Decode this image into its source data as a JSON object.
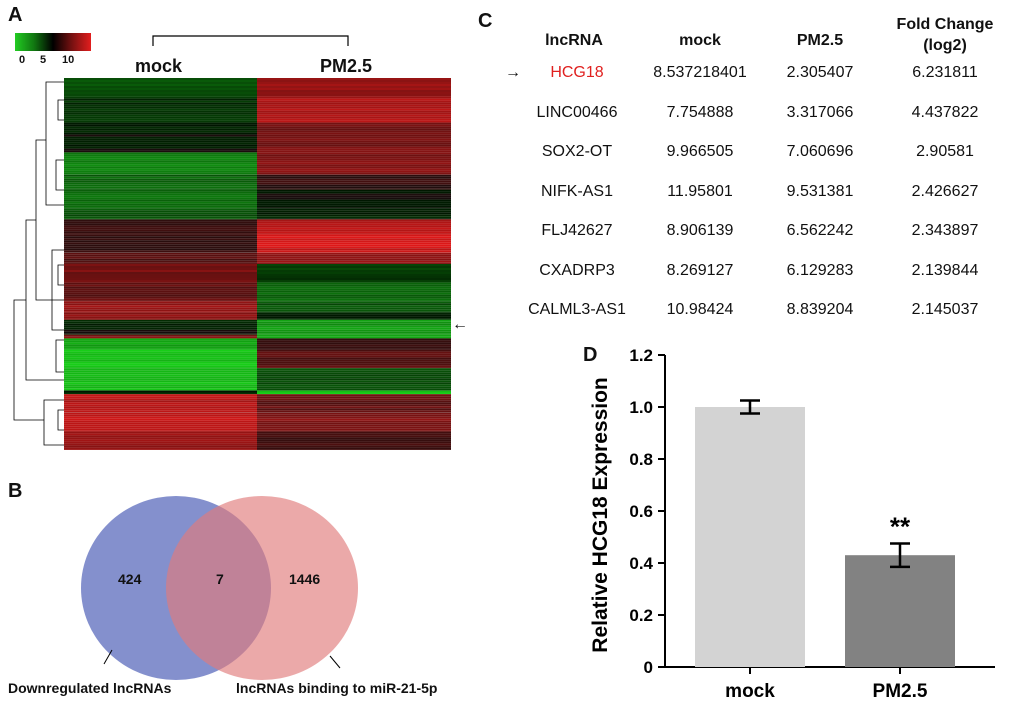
{
  "panels": {
    "A": "A",
    "B": "B",
    "C": "C",
    "D": "D"
  },
  "colors": {
    "low": "#22cc22",
    "mid": "#000000",
    "high": "#e21e1e",
    "highlight": "#e0201f",
    "venn_left": "#6f7cc4",
    "venn_right": "#e17b7b",
    "bar_mock": "#d3d3d3",
    "bar_pm": "#828282"
  },
  "heatmap": {
    "col_labels": [
      "mock",
      "PM2.5"
    ],
    "colorbar_ticks": [
      "0",
      "5",
      "10"
    ],
    "arrow": "←"
  },
  "venn": {
    "left_only": "424",
    "overlap": "7",
    "right_only": "1446",
    "left_label": "Downregulated lncRNAs",
    "right_label": "lncRNAs binding to miR-21-5p"
  },
  "table": {
    "headers": [
      "lncRNA",
      "mock",
      "PM2.5",
      "Fold Change\n(log2)"
    ],
    "marker": "→",
    "rows": [
      {
        "name": "HCG18",
        "mock": "8.537218401",
        "pm": "2.305407",
        "fc": "6.231811"
      },
      {
        "name": "LINC00466",
        "mock": "7.754888",
        "pm": "3.317066",
        "fc": "4.437822"
      },
      {
        "name": "SOX2-OT",
        "mock": "9.966505",
        "pm": "7.060696",
        "fc": "2.90581"
      },
      {
        "name": "NIFK-AS1",
        "mock": "11.95801",
        "pm": "9.531381",
        "fc": "2.426627"
      },
      {
        "name": "FLJ42627",
        "mock": "8.906139",
        "pm": "6.562242",
        "fc": "2.343897"
      },
      {
        "name": "CXADRP3",
        "mock": "8.269127",
        "pm": "6.129283",
        "fc": "2.139844"
      },
      {
        "name": "CALML3-AS1",
        "mock": "10.98424",
        "pm": "8.839204",
        "fc": "2.145037"
      }
    ]
  },
  "chart_data": {
    "type": "bar",
    "categories": [
      "mock",
      "PM2.5"
    ],
    "values": [
      1.0,
      0.43
    ],
    "errors": [
      0.025,
      0.045
    ],
    "significance": [
      "",
      "**"
    ],
    "title": "",
    "xlabel": "",
    "ylabel": "Relative HCG18 Expression",
    "ylim": [
      0,
      1.2
    ],
    "yticks": [
      "0",
      "0.2",
      "0.4",
      "0.6",
      "0.8",
      "1.0",
      "1.2"
    ]
  }
}
